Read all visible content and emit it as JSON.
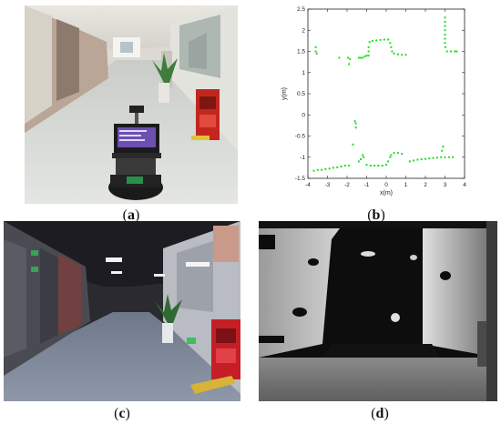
{
  "figure": {
    "captions": {
      "a": "a",
      "b": "b",
      "c": "c",
      "d": "d"
    }
  },
  "chart_data": {
    "type": "scatter",
    "title": "",
    "xlabel": "x(m)",
    "ylabel": "y(m)",
    "xlim": [
      -4,
      4
    ],
    "ylim": [
      -1.5,
      2.5
    ],
    "xticks": [
      "-4",
      "-3",
      "-2",
      "-1",
      "0",
      "1",
      "2",
      "3",
      "4"
    ],
    "yticks": [
      "-1.5",
      "-1",
      "-0.5",
      "0",
      "0.5",
      "1",
      "1.5",
      "2",
      "2.5"
    ],
    "grid": false,
    "series": [
      {
        "color": "#22dd22",
        "points": [
          [
            -3.6,
            1.5
          ],
          [
            -3.6,
            1.6
          ],
          [
            -3.55,
            1.45
          ],
          [
            -2.4,
            1.35
          ],
          [
            -1.95,
            1.35
          ],
          [
            -1.9,
            1.2
          ],
          [
            -1.85,
            1.32
          ],
          [
            -1.4,
            1.35
          ],
          [
            -1.3,
            1.35
          ],
          [
            -1.2,
            1.35
          ],
          [
            -1.1,
            1.38
          ],
          [
            -1.0,
            1.4
          ],
          [
            -0.9,
            1.4
          ],
          [
            -0.9,
            1.5
          ],
          [
            -0.9,
            1.6
          ],
          [
            -0.85,
            1.72
          ],
          [
            -0.7,
            1.75
          ],
          [
            -0.5,
            1.76
          ],
          [
            -0.3,
            1.77
          ],
          [
            -0.1,
            1.78
          ],
          [
            0.1,
            1.78
          ],
          [
            0.2,
            1.7
          ],
          [
            0.25,
            1.6
          ],
          [
            0.3,
            1.5
          ],
          [
            0.4,
            1.45
          ],
          [
            0.6,
            1.43
          ],
          [
            0.8,
            1.42
          ],
          [
            1.0,
            1.42
          ],
          [
            3.0,
            2.3
          ],
          [
            3.0,
            2.2
          ],
          [
            3.0,
            2.1
          ],
          [
            3.0,
            2.0
          ],
          [
            3.0,
            1.9
          ],
          [
            3.0,
            1.8
          ],
          [
            3.0,
            1.7
          ],
          [
            3.02,
            1.6
          ],
          [
            3.1,
            1.5
          ],
          [
            3.3,
            1.5
          ],
          [
            3.5,
            1.5
          ],
          [
            3.6,
            1.5
          ],
          [
            -1.6,
            -0.15
          ],
          [
            -1.55,
            -0.2
          ],
          [
            -1.55,
            -0.3
          ],
          [
            -1.7,
            -0.7
          ],
          [
            -3.7,
            -1.32
          ],
          [
            -3.5,
            -1.3
          ],
          [
            -3.3,
            -1.3
          ],
          [
            -3.1,
            -1.28
          ],
          [
            -2.9,
            -1.27
          ],
          [
            -2.7,
            -1.25
          ],
          [
            -2.5,
            -1.24
          ],
          [
            -2.3,
            -1.22
          ],
          [
            -2.1,
            -1.2
          ],
          [
            -1.9,
            -1.2
          ],
          [
            -1.4,
            -1.1
          ],
          [
            -1.3,
            -1.05
          ],
          [
            -1.2,
            -0.95
          ],
          [
            -1.15,
            -1.0
          ],
          [
            -1.0,
            -1.18
          ],
          [
            -0.8,
            -1.2
          ],
          [
            -0.6,
            -1.2
          ],
          [
            -0.4,
            -1.2
          ],
          [
            -0.2,
            -1.2
          ],
          [
            0.0,
            -1.18
          ],
          [
            0.1,
            -1.1
          ],
          [
            0.2,
            -1.0
          ],
          [
            0.25,
            -0.95
          ],
          [
            0.4,
            -0.9
          ],
          [
            0.6,
            -0.9
          ],
          [
            0.8,
            -0.92
          ],
          [
            1.2,
            -1.1
          ],
          [
            1.4,
            -1.08
          ],
          [
            1.6,
            -1.06
          ],
          [
            1.8,
            -1.05
          ],
          [
            2.0,
            -1.04
          ],
          [
            2.2,
            -1.03
          ],
          [
            2.4,
            -1.02
          ],
          [
            2.6,
            -1.01
          ],
          [
            2.8,
            -1.0
          ],
          [
            3.0,
            -1.0
          ],
          [
            3.2,
            -1.0
          ],
          [
            3.4,
            -1.0
          ],
          [
            2.9,
            -0.75
          ],
          [
            2.85,
            -0.85
          ]
        ]
      }
    ]
  }
}
